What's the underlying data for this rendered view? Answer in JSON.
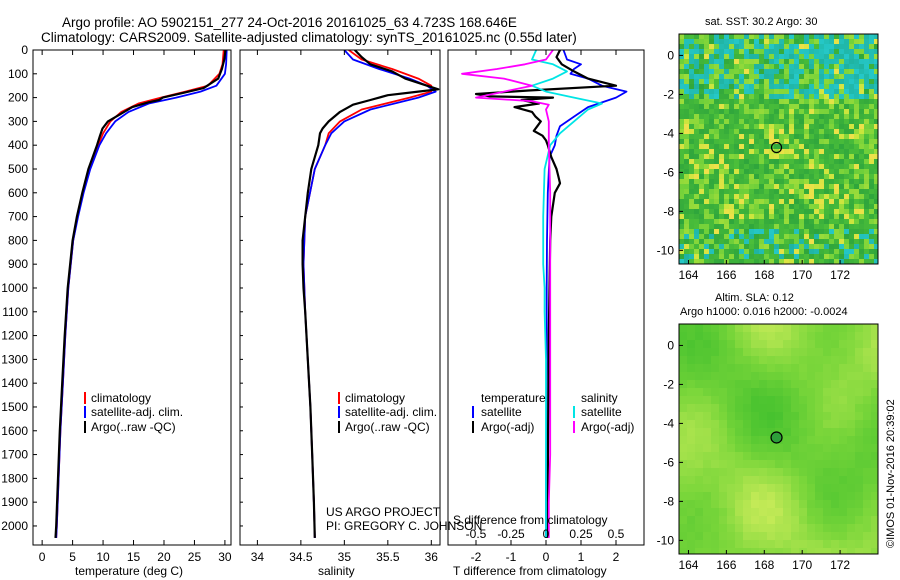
{
  "title": {
    "line1": "Argo profile: AO 5902151_277 24-Oct-2016 20161025_63 4.723S 168.646E",
    "line2": "Climatology: CARS2009. Satellite-adjusted climatology: synTS_20161025.nc (0.55d later)"
  },
  "colors": {
    "climatology": "#ff0000",
    "satellite": "#0000ff",
    "argo": "#000000",
    "salinity_satellite": "#00e5e5",
    "salinity_argo": "#ff00ff"
  },
  "chart_data": [
    {
      "type": "line",
      "id": "temperature",
      "xlabel": "temperature (deg C)",
      "ylabel": "",
      "xlim": [
        -1.5,
        31
      ],
      "ylim": [
        2080,
        0
      ],
      "x_ticks": [
        0,
        5,
        10,
        15,
        20,
        25,
        30
      ],
      "y_ticks": [
        0,
        100,
        200,
        300,
        400,
        500,
        600,
        700,
        800,
        900,
        1000,
        1100,
        1200,
        1300,
        1400,
        1500,
        1600,
        1700,
        1800,
        1900,
        2000
      ],
      "legend": [
        "climatology",
        "satellite-adj. clim.",
        "Argo(..raw -QC)"
      ],
      "series": [
        {
          "name": "climatology",
          "color": "#ff0000",
          "depth": [
            0,
            60,
            100,
            150,
            175,
            200,
            225,
            260,
            300,
            350,
            400,
            500,
            600,
            700,
            800,
            1000,
            1200,
            1400,
            1600,
            1800,
            2000,
            2050
          ],
          "values": [
            29.8,
            29.6,
            29.1,
            27.2,
            23.5,
            19.5,
            15.8,
            13.0,
            11.2,
            10.0,
            9.2,
            7.8,
            6.7,
            5.8,
            5.1,
            4.3,
            3.8,
            3.4,
            3.0,
            2.7,
            2.4,
            2.3
          ]
        },
        {
          "name": "satellite-adj. clim.",
          "color": "#0000ff",
          "depth": [
            0,
            60,
            100,
            150,
            175,
            200,
            225,
            260,
            300,
            350,
            400,
            500,
            600,
            700,
            800,
            1000,
            1200,
            1400,
            1600,
            1800,
            2000,
            2050
          ],
          "values": [
            30.3,
            30.2,
            30.0,
            28.6,
            26.0,
            22.0,
            17.5,
            14.2,
            12.0,
            10.5,
            9.4,
            7.9,
            6.8,
            5.9,
            5.1,
            4.3,
            3.8,
            3.4,
            3.0,
            2.7,
            2.4,
            2.3
          ]
        },
        {
          "name": "Argo(..raw -QC)",
          "color": "#000000",
          "depth": [
            0,
            40,
            80,
            120,
            160,
            180,
            190,
            200,
            210,
            220,
            240,
            270,
            300,
            330,
            360,
            400,
            500,
            600,
            700,
            800,
            1000,
            1200,
            1400,
            1600,
            1800,
            2000,
            2050
          ],
          "values": [
            30.1,
            29.9,
            29.5,
            28.9,
            26.5,
            23.2,
            21.5,
            19.8,
            19.2,
            17.4,
            14.8,
            12.8,
            10.8,
            9.9,
            9.5,
            9.0,
            7.6,
            6.6,
            5.7,
            5.0,
            4.2,
            3.7,
            3.3,
            2.9,
            2.6,
            2.3,
            2.2
          ]
        }
      ]
    },
    {
      "type": "line",
      "id": "salinity",
      "xlabel": "salinity",
      "xlim": [
        33.8,
        36.1
      ],
      "ylim": [
        2080,
        0
      ],
      "x_ticks": [
        34,
        34.5,
        35,
        35.5,
        36
      ],
      "x_tick_labels": [
        "34",
        "34.5",
        "35",
        "35.5",
        "36"
      ],
      "legend": [
        "climatology",
        "satellite-adj. clim.",
        "Argo(..raw -QC)"
      ],
      "series": [
        {
          "name": "climatology",
          "color": "#ff0000",
          "depth": [
            0,
            40,
            80,
            120,
            150,
            175,
            200,
            250,
            300,
            350,
            400,
            500,
            700,
            900,
            1100,
            1300,
            1500,
            1700,
            1900,
            2050
          ],
          "values": [
            35.05,
            35.2,
            35.55,
            35.85,
            36.0,
            36.0,
            35.75,
            35.2,
            34.95,
            34.82,
            34.78,
            34.66,
            34.55,
            34.53,
            34.55,
            34.58,
            34.61,
            34.63,
            34.65,
            34.66
          ]
        },
        {
          "name": "satellite-adj. clim.",
          "color": "#0000ff",
          "depth": [
            0,
            40,
            80,
            120,
            150,
            175,
            200,
            250,
            300,
            350,
            400,
            500,
            700,
            900,
            1100,
            1300,
            1500,
            1700,
            1900,
            2050
          ],
          "values": [
            35.0,
            35.1,
            35.4,
            35.75,
            35.95,
            36.05,
            35.85,
            35.3,
            35.0,
            34.85,
            34.78,
            34.66,
            34.55,
            34.53,
            34.55,
            34.58,
            34.61,
            34.63,
            34.65,
            34.66
          ]
        },
        {
          "name": "Argo(..raw -QC)",
          "color": "#000000",
          "depth": [
            0,
            30,
            60,
            90,
            120,
            150,
            165,
            175,
            190,
            210,
            230,
            260,
            300,
            330,
            350,
            400,
            500,
            600,
            700,
            800,
            900,
            1000,
            1100,
            1300,
            1500,
            1700,
            1900,
            2050
          ],
          "values": [
            35.12,
            35.2,
            35.3,
            35.55,
            35.7,
            35.95,
            36.08,
            35.85,
            35.5,
            35.3,
            35.1,
            34.95,
            34.82,
            34.75,
            34.72,
            34.7,
            34.62,
            34.58,
            34.55,
            34.52,
            34.52,
            34.53,
            34.55,
            34.58,
            34.61,
            34.63,
            34.65,
            34.66
          ]
        }
      ]
    },
    {
      "type": "line",
      "id": "difference",
      "xlabel": "T difference from climatology",
      "x2label": "S difference from climatology",
      "xlim": [
        -2.8,
        2.8
      ],
      "ylim": [
        2080,
        0
      ],
      "x_ticks": [
        -2,
        -1,
        0,
        1,
        2
      ],
      "x2_ticks": [
        -0.5,
        -0.25,
        0,
        0.25,
        0.5
      ],
      "x2_range": [
        -0.7,
        0.7
      ],
      "legend_temperature": [
        "temperature",
        "satellite",
        "Argo(-adj)"
      ],
      "legend_salinity": [
        "salinity",
        "satellite",
        "Argo(-adj)"
      ],
      "series": [
        {
          "name": "temperature satellite",
          "color": "#0000ff",
          "axis": "T",
          "depth": [
            0,
            40,
            60,
            80,
            100,
            120,
            150,
            175,
            200,
            240,
            280,
            320,
            360,
            400,
            450,
            600,
            800,
            1000,
            1200,
            1400,
            1600,
            1800,
            2000,
            2050
          ],
          "values": [
            0.5,
            0.6,
            1.0,
            0.8,
            0.7,
            1.2,
            1.6,
            2.3,
            2.0,
            1.2,
            0.8,
            0.4,
            0.3,
            0.25,
            0.1,
            0.05,
            0.03,
            0.02,
            0.02,
            0.01,
            0.01,
            0.0,
            0.0,
            0.0
          ]
        },
        {
          "name": "temperature Argo(-adj)",
          "color": "#000000",
          "axis": "T",
          "depth": [
            0,
            30,
            60,
            90,
            120,
            150,
            170,
            185,
            195,
            200,
            210,
            225,
            240,
            260,
            280,
            300,
            320,
            340,
            360,
            380,
            400,
            450,
            500,
            530,
            560,
            600,
            700,
            800,
            1000,
            1200,
            1400,
            1600,
            1800,
            2000,
            2050
          ],
          "values": [
            0.4,
            0.3,
            0.45,
            0.8,
            1.2,
            2.0,
            -0.5,
            -2.0,
            -1.6,
            0.2,
            -0.7,
            -0.2,
            -0.9,
            -0.4,
            -0.3,
            -0.15,
            -0.25,
            -0.35,
            -0.1,
            0.0,
            0.05,
            0.15,
            0.3,
            0.35,
            0.4,
            0.25,
            0.15,
            0.12,
            0.1,
            0.08,
            0.07,
            0.06,
            0.05,
            0.05,
            0.05
          ]
        },
        {
          "name": "salinity satellite",
          "color": "#00e5e5",
          "axis": "S",
          "depth": [
            0,
            40,
            60,
            90,
            120,
            150,
            175,
            200,
            225,
            250,
            300,
            350,
            400,
            500,
            700,
            900,
            1000,
            1100,
            1300,
            1500,
            1700,
            1900,
            2050
          ],
          "values": [
            -0.07,
            -0.1,
            0.05,
            0.15,
            0.05,
            -0.1,
            0.0,
            0.2,
            0.4,
            0.3,
            0.2,
            0.1,
            0.03,
            -0.01,
            -0.02,
            -0.02,
            -0.01,
            -0.01,
            0.0,
            0.0,
            0.0,
            0.0,
            0.0
          ]
        },
        {
          "name": "salinity Argo(-adj)",
          "color": "#ff00ff",
          "axis": "S",
          "depth": [
            0,
            40,
            60,
            80,
            100,
            120,
            150,
            175,
            200,
            215,
            230,
            250,
            300,
            400,
            600,
            800,
            1000,
            1100,
            1300,
            1500,
            1700,
            1900,
            2050
          ],
          "values": [
            0.05,
            0.0,
            -0.15,
            -0.35,
            -0.6,
            -0.3,
            -0.1,
            -0.3,
            -0.5,
            -0.1,
            0.02,
            0.0,
            0.02,
            0.02,
            0.03,
            0.03,
            0.03,
            0.03,
            0.03,
            0.03,
            0.03,
            0.02,
            0.02
          ]
        }
      ]
    },
    {
      "type": "heatmap",
      "id": "sst_map",
      "title": "sat. SST: 30.2 Argo: 30",
      "xlim": [
        163.5,
        174
      ],
      "ylim": [
        -10.7,
        1.1
      ],
      "x_ticks": [
        164,
        166,
        168,
        170,
        172
      ],
      "y_ticks": [
        0,
        -2,
        -4,
        -6,
        -8,
        -10
      ],
      "argo_position": [
        168.646,
        -4.723
      ]
    },
    {
      "type": "heatmap",
      "id": "sla_map",
      "title": "Altim. SLA: 0.12",
      "subtitle": "Argo h1000: 0.016 h2000: -0.0024",
      "xlim": [
        163.5,
        174
      ],
      "ylim": [
        -10.7,
        1.1
      ],
      "x_ticks": [
        164,
        166,
        168,
        170,
        172
      ],
      "y_ticks": [
        0,
        -2,
        -4,
        -6,
        -8,
        -10
      ],
      "argo_position": [
        168.646,
        -4.723
      ]
    }
  ],
  "credits": {
    "line1": "US ARGO PROJECT",
    "line2": "PI: GREGORY C. JOHNSON"
  },
  "watermark": "©IMOS 01-Nov-2016 20:39:02"
}
